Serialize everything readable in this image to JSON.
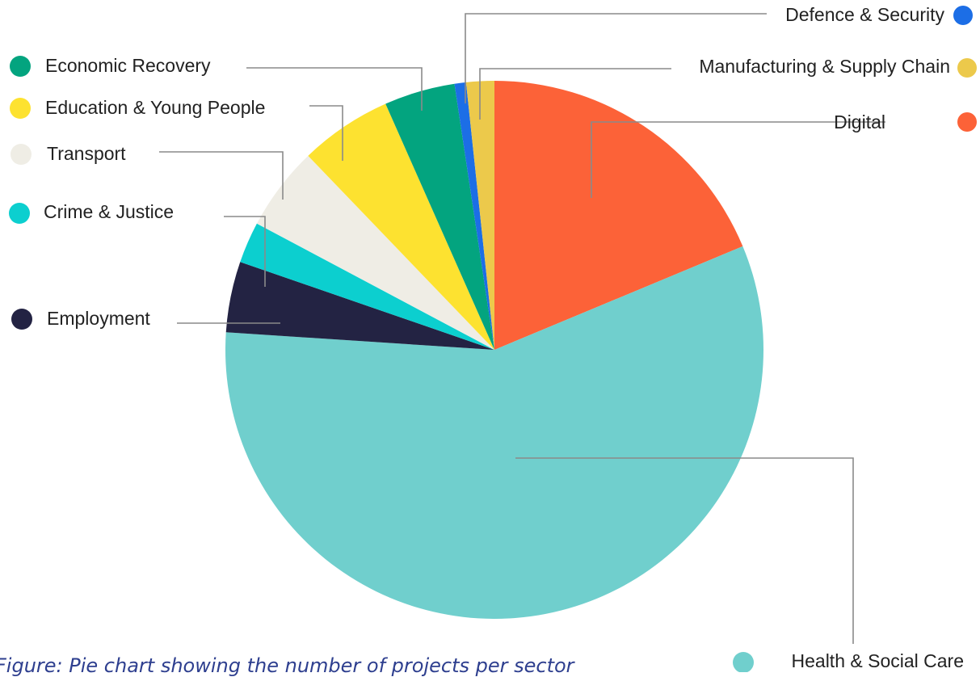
{
  "chart_data": {
    "type": "pie",
    "start_angle_deg": 0,
    "direction": "clockwise",
    "slices": [
      {
        "label": "Digital",
        "value": 18.9,
        "color": "#fc6238"
      },
      {
        "label": "Health & Social Care",
        "value": 57.9,
        "color": "#70cfcd"
      },
      {
        "label": "Employment",
        "value": 4.3,
        "color": "#232343"
      },
      {
        "label": "Crime & Justice",
        "value": 2.5,
        "color": "#0ccfcf"
      },
      {
        "label": "Transport",
        "value": 5.1,
        "color": "#efede5"
      },
      {
        "label": "Education & Young People",
        "value": 5.6,
        "color": "#fde230"
      },
      {
        "label": "Economic Recovery",
        "value": 4.3,
        "color": "#03a47f"
      },
      {
        "label": "Defence & Security",
        "value": 0.7,
        "color": "#1c6ee6"
      },
      {
        "label": "Manufacturing & Supply Chain",
        "value": 1.7,
        "color": "#ecc94b"
      }
    ],
    "legend": "callout labels with leader lines"
  },
  "caption": "Figure: Pie chart showing the number of projects per sector"
}
